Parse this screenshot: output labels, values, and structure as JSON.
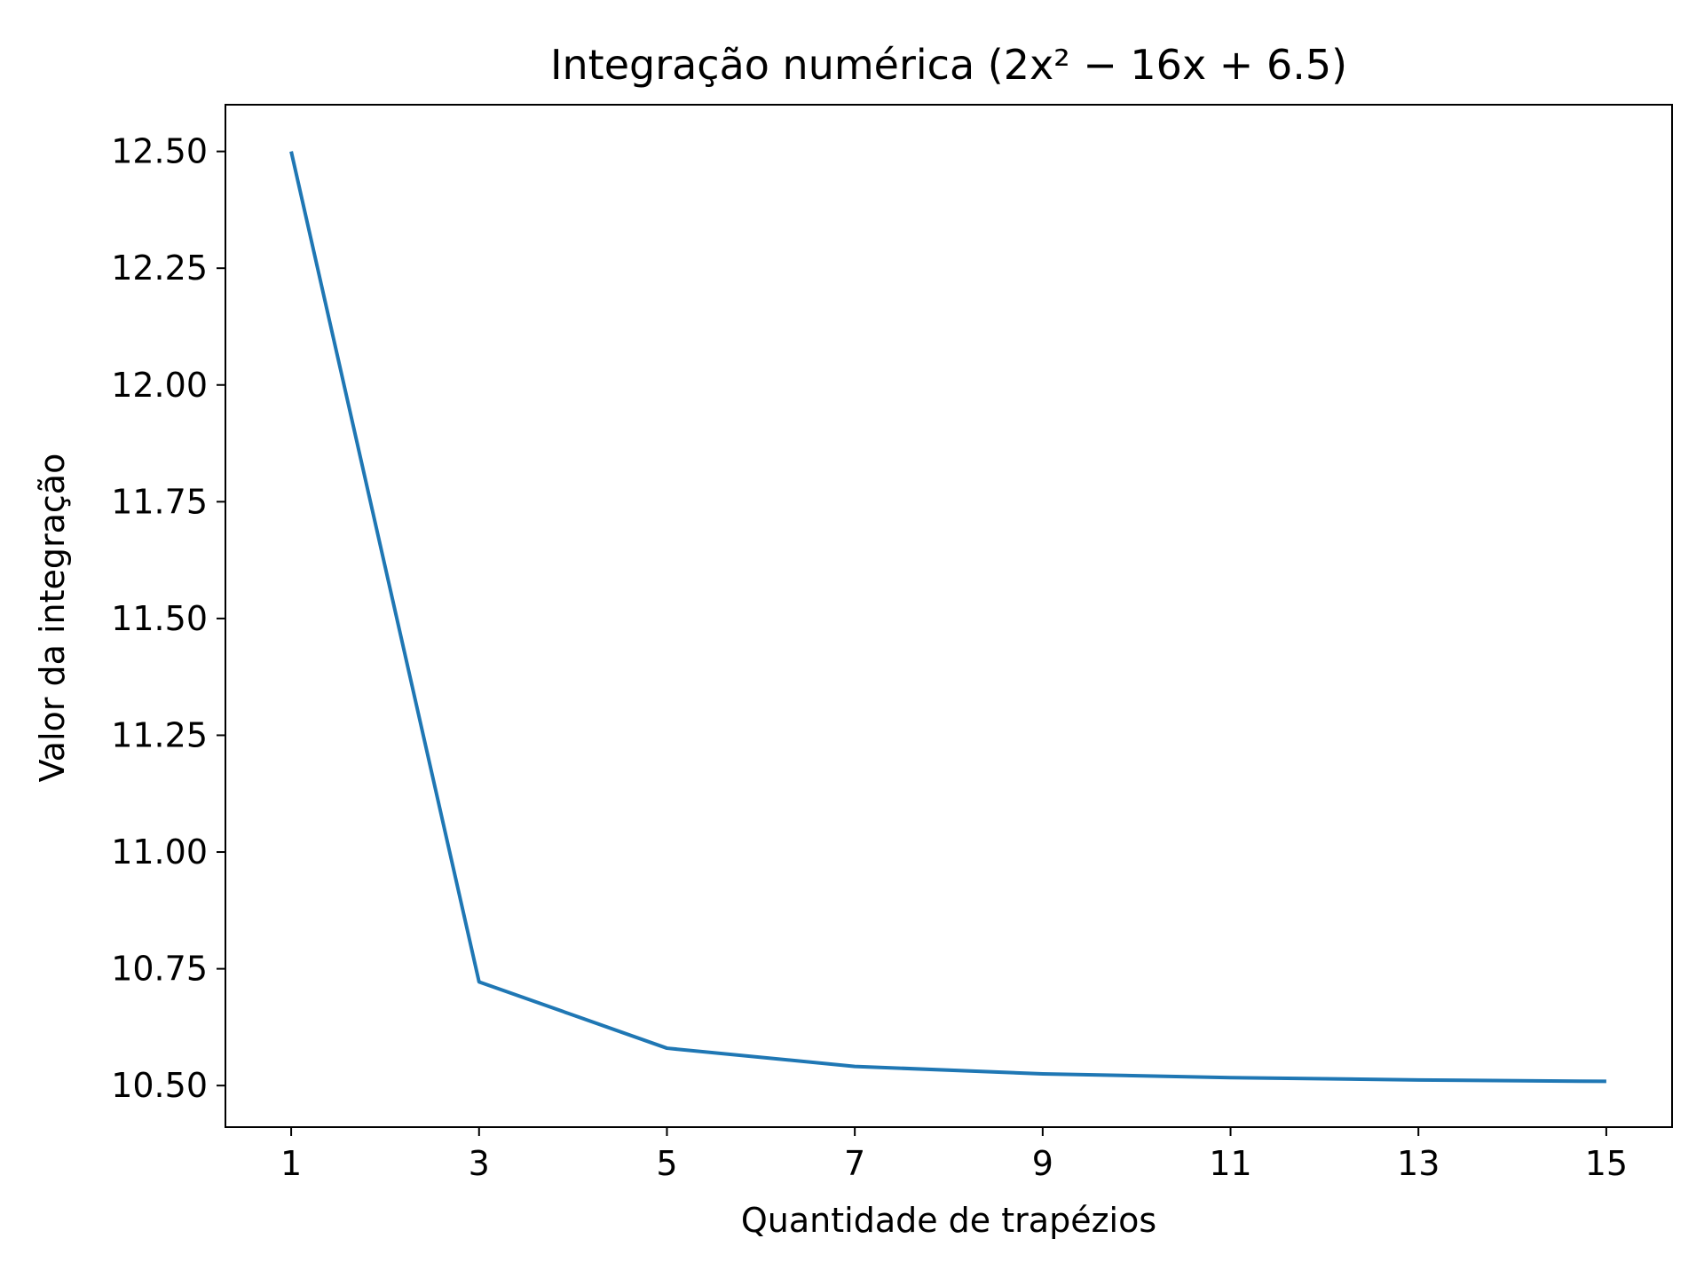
{
  "chart_data": {
    "type": "line",
    "title": "Integração numérica (2x² − 16x + 6.5)",
    "xlabel": "Quantidade de trapézios",
    "ylabel": "Valor da integração",
    "x": [
      1,
      3,
      5,
      7,
      9,
      11,
      13,
      15
    ],
    "series": [
      {
        "values": [
          12.5,
          10.722,
          10.58,
          10.541,
          10.525,
          10.517,
          10.512,
          10.509
        ],
        "color": "#1f77b4"
      }
    ],
    "xticks": [
      "1",
      "3",
      "5",
      "7",
      "9",
      "11",
      "13",
      "15"
    ],
    "yticks": [
      "10.50",
      "10.75",
      "11.00",
      "11.25",
      "11.50",
      "11.75",
      "12.00",
      "12.25",
      "12.50"
    ],
    "xlim": [
      0.3,
      15.7
    ],
    "ylim": [
      10.411,
      12.6
    ],
    "grid": false,
    "legend": "none"
  }
}
